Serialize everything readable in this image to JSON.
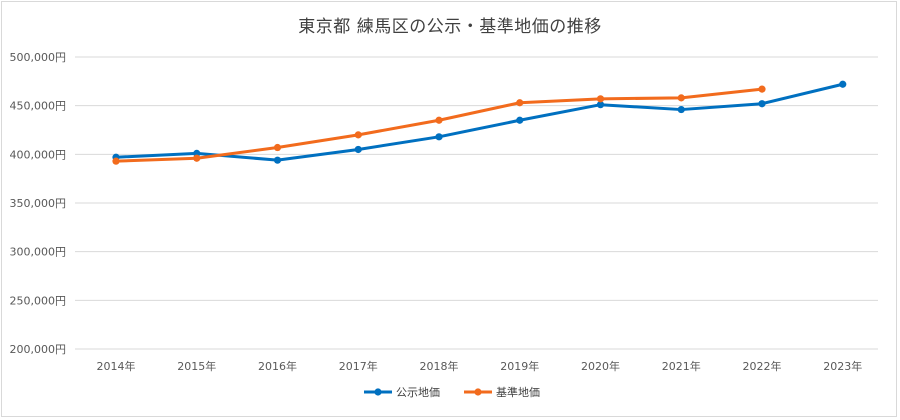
{
  "chart_data": {
    "type": "line",
    "title": "東京都 練馬区の公示・基準地価の推移",
    "xlabel": "",
    "ylabel": "",
    "categories": [
      "2014年",
      "2015年",
      "2016年",
      "2017年",
      "2018年",
      "2019年",
      "2020年",
      "2021年",
      "2022年",
      "2023年"
    ],
    "ylim": [
      200000,
      500000
    ],
    "y_ticks": [
      "200,000円",
      "250,000円",
      "300,000円",
      "350,000円",
      "400,000円",
      "450,000円",
      "500,000円"
    ],
    "y_tick_values": [
      200000,
      250000,
      300000,
      350000,
      400000,
      450000,
      500000
    ],
    "grid": true,
    "legend_position": "bottom",
    "series": [
      {
        "name": "公示地価",
        "color": "#0070c0",
        "values": [
          397000,
          401000,
          394000,
          405000,
          418000,
          435000,
          451000,
          446000,
          452000,
          472000
        ]
      },
      {
        "name": "基準地価",
        "color": "#f26b1d",
        "values": [
          393000,
          396000,
          407000,
          420000,
          435000,
          453000,
          457000,
          458000,
          467000,
          null
        ]
      }
    ]
  }
}
